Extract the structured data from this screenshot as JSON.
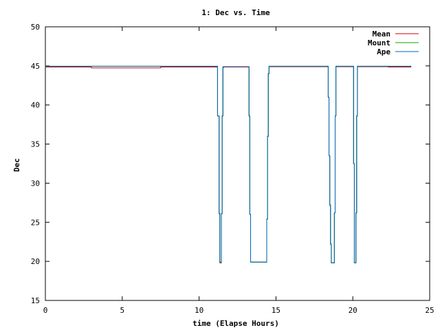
{
  "chart_data": {
    "type": "line",
    "title": "1: Dec vs. Time",
    "xlabel": "time (Elapse Hours)",
    "ylabel": "Dec",
    "xlim": [
      0,
      25
    ],
    "ylim": [
      15,
      50
    ],
    "xticks": [
      "0",
      "5",
      "10",
      "15",
      "20",
      "25"
    ],
    "yticks": [
      "15",
      "20",
      "25",
      "30",
      "35",
      "40",
      "45",
      "50"
    ],
    "grid": false,
    "legend_position": "top-right",
    "series": [
      {
        "name": "Mean",
        "color": "#cc0000",
        "points": [
          [
            0,
            44.85
          ],
          [
            3.0,
            44.85
          ],
          [
            3.0,
            44.75
          ],
          [
            7.5,
            44.75
          ],
          [
            7.5,
            44.85
          ],
          [
            11.2,
            44.85
          ],
          [
            11.2,
            38.6
          ],
          [
            11.3,
            38.6
          ],
          [
            11.3,
            26.1
          ],
          [
            11.35,
            26.1
          ],
          [
            11.35,
            19.8
          ],
          [
            11.45,
            19.8
          ],
          [
            11.45,
            26.1
          ],
          [
            11.5,
            26.1
          ],
          [
            11.5,
            38.6
          ],
          [
            11.55,
            38.6
          ],
          [
            11.55,
            44.8
          ],
          [
            11.6,
            44.8
          ],
          [
            11.6,
            44.85
          ],
          [
            13.25,
            44.85
          ],
          [
            13.25,
            38.6
          ],
          [
            13.3,
            38.6
          ],
          [
            13.3,
            26.0
          ],
          [
            13.35,
            26.0
          ],
          [
            13.35,
            19.9
          ],
          [
            14.4,
            19.9
          ],
          [
            14.4,
            25.4
          ],
          [
            14.45,
            25.4
          ],
          [
            14.45,
            36.0
          ],
          [
            14.5,
            36.0
          ],
          [
            14.5,
            44.0
          ],
          [
            14.55,
            44.0
          ],
          [
            14.55,
            44.9
          ],
          [
            18.4,
            44.9
          ],
          [
            18.4,
            41.0
          ],
          [
            18.45,
            41.0
          ],
          [
            18.45,
            33.5
          ],
          [
            18.5,
            33.5
          ],
          [
            18.5,
            27.2
          ],
          [
            18.55,
            27.2
          ],
          [
            18.55,
            22.2
          ],
          [
            18.6,
            22.2
          ],
          [
            18.6,
            19.8
          ],
          [
            18.8,
            19.8
          ],
          [
            18.8,
            26.2
          ],
          [
            18.85,
            26.2
          ],
          [
            18.85,
            38.6
          ],
          [
            18.9,
            38.6
          ],
          [
            18.9,
            44.9
          ],
          [
            20.05,
            44.9
          ],
          [
            20.05,
            32.5
          ],
          [
            20.1,
            32.5
          ],
          [
            20.1,
            19.8
          ],
          [
            20.2,
            19.8
          ],
          [
            20.2,
            26.2
          ],
          [
            20.25,
            26.2
          ],
          [
            20.25,
            38.6
          ],
          [
            20.3,
            38.6
          ],
          [
            20.3,
            44.9
          ],
          [
            22.3,
            44.9
          ],
          [
            22.3,
            44.85
          ],
          [
            23.8,
            44.85
          ]
        ]
      },
      {
        "name": "Mount",
        "color": "#00aa00",
        "points": [
          [
            0,
            44.95
          ],
          [
            11.2,
            44.95
          ],
          [
            11.2,
            38.6
          ],
          [
            11.3,
            38.6
          ],
          [
            11.3,
            26.1
          ],
          [
            11.35,
            26.1
          ],
          [
            11.35,
            19.9
          ],
          [
            11.45,
            19.9
          ],
          [
            11.45,
            26.1
          ],
          [
            11.5,
            26.1
          ],
          [
            11.5,
            38.6
          ],
          [
            11.55,
            38.6
          ],
          [
            11.55,
            44.9
          ],
          [
            13.25,
            44.9
          ],
          [
            13.25,
            38.6
          ],
          [
            13.3,
            38.6
          ],
          [
            13.3,
            26.0
          ],
          [
            13.35,
            26.0
          ],
          [
            13.35,
            19.9
          ],
          [
            14.4,
            19.9
          ],
          [
            14.4,
            25.4
          ],
          [
            14.45,
            25.4
          ],
          [
            14.45,
            36.0
          ],
          [
            14.5,
            36.0
          ],
          [
            14.5,
            44.0
          ],
          [
            14.55,
            44.0
          ],
          [
            14.55,
            44.95
          ],
          [
            18.4,
            44.95
          ],
          [
            18.4,
            41.0
          ],
          [
            18.45,
            41.0
          ],
          [
            18.45,
            33.5
          ],
          [
            18.5,
            33.5
          ],
          [
            18.5,
            27.2
          ],
          [
            18.55,
            27.2
          ],
          [
            18.55,
            22.2
          ],
          [
            18.6,
            22.2
          ],
          [
            18.6,
            19.8
          ],
          [
            18.8,
            19.8
          ],
          [
            18.8,
            26.2
          ],
          [
            18.85,
            26.2
          ],
          [
            18.85,
            38.6
          ],
          [
            18.9,
            38.6
          ],
          [
            18.9,
            44.95
          ],
          [
            20.05,
            44.95
          ],
          [
            20.05,
            32.5
          ],
          [
            20.1,
            32.5
          ],
          [
            20.1,
            19.8
          ],
          [
            20.2,
            19.8
          ],
          [
            20.2,
            26.2
          ],
          [
            20.25,
            26.2
          ],
          [
            20.25,
            38.6
          ],
          [
            20.3,
            38.6
          ],
          [
            20.3,
            44.95
          ],
          [
            23.8,
            44.95
          ]
        ]
      },
      {
        "name": "Ape",
        "color": "#0066bb",
        "points": [
          [
            0,
            44.95
          ],
          [
            11.2,
            44.95
          ],
          [
            11.2,
            38.6
          ],
          [
            11.3,
            38.6
          ],
          [
            11.3,
            26.1
          ],
          [
            11.35,
            26.1
          ],
          [
            11.35,
            19.9
          ],
          [
            11.45,
            19.9
          ],
          [
            11.45,
            26.1
          ],
          [
            11.5,
            26.1
          ],
          [
            11.5,
            38.6
          ],
          [
            11.55,
            38.6
          ],
          [
            11.55,
            44.9
          ],
          [
            13.25,
            44.9
          ],
          [
            13.25,
            38.6
          ],
          [
            13.3,
            38.6
          ],
          [
            13.3,
            26.0
          ],
          [
            13.35,
            26.0
          ],
          [
            13.35,
            19.9
          ],
          [
            14.4,
            19.9
          ],
          [
            14.4,
            25.4
          ],
          [
            14.45,
            25.4
          ],
          [
            14.45,
            36.0
          ],
          [
            14.5,
            36.0
          ],
          [
            14.5,
            44.0
          ],
          [
            14.55,
            44.0
          ],
          [
            14.55,
            44.95
          ],
          [
            18.4,
            44.95
          ],
          [
            18.4,
            41.0
          ],
          [
            18.45,
            41.0
          ],
          [
            18.45,
            33.5
          ],
          [
            18.5,
            33.5
          ],
          [
            18.5,
            27.2
          ],
          [
            18.55,
            27.2
          ],
          [
            18.55,
            22.2
          ],
          [
            18.6,
            22.2
          ],
          [
            18.6,
            19.8
          ],
          [
            18.8,
            19.8
          ],
          [
            18.8,
            26.2
          ],
          [
            18.85,
            26.2
          ],
          [
            18.85,
            38.6
          ],
          [
            18.9,
            38.6
          ],
          [
            18.9,
            44.95
          ],
          [
            20.05,
            44.95
          ],
          [
            20.05,
            32.5
          ],
          [
            20.1,
            32.5
          ],
          [
            20.1,
            19.8
          ],
          [
            20.2,
            19.8
          ],
          [
            20.2,
            26.2
          ],
          [
            20.25,
            26.2
          ],
          [
            20.25,
            38.6
          ],
          [
            20.3,
            38.6
          ],
          [
            20.3,
            44.95
          ],
          [
            23.8,
            44.95
          ]
        ]
      }
    ]
  }
}
